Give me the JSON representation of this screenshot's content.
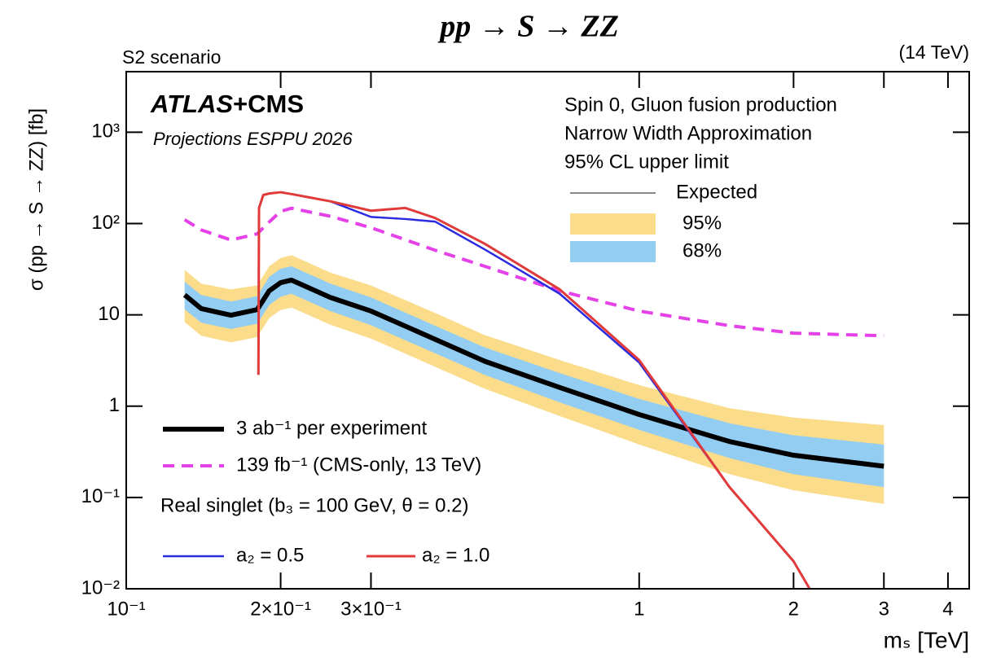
{
  "chart_data": {
    "type": "line",
    "title": "pp → S → ZZ",
    "subtitle": "S2 scenario",
    "energy": "(14 TeV)",
    "experiment": [
      "ATLAS",
      "+CMS"
    ],
    "projection": "Projections ESPPU 2026",
    "notes": [
      "Spin 0, Gluon fusion production",
      "Narrow Width Approximation",
      "95% CL upper limit"
    ],
    "expected_label": "Expected",
    "model_label": "Real singlet (b₃ = 100 GeV, θ = 0.2)",
    "x_label": "mₛ [TeV]",
    "y_label": "σ (pp → S → ZZ) [fb]",
    "xscale": "log",
    "yscale": "log",
    "xlim": [
      0.1,
      4.4
    ],
    "ylim": [
      0.01,
      4600
    ],
    "xticks": [
      {
        "value": 0.1,
        "label": "10⁻¹"
      },
      {
        "value": 0.2,
        "label": "2×10⁻¹"
      },
      {
        "value": 0.3,
        "label": "3×10⁻¹"
      },
      1,
      2,
      3,
      4
    ],
    "yticks": [
      {
        "value": 0.01,
        "label": "10⁻²"
      },
      {
        "value": 0.1,
        "label": "10⁻¹"
      },
      1,
      10,
      {
        "value": 100,
        "label": "10²"
      },
      {
        "value": 1000,
        "label": "10³"
      }
    ],
    "x": [
      0.13,
      0.14,
      0.16,
      0.18,
      0.19,
      0.2,
      0.21,
      0.25,
      0.3,
      0.4,
      0.5,
      0.7,
      1,
      1.5,
      2,
      3
    ],
    "bands": [
      {
        "name": "95%",
        "color": "#fbdc8a",
        "low": [
          8.3,
          5.9,
          5,
          5.7,
          9.2,
          11.3,
          12,
          7.8,
          5.5,
          2.7,
          1.55,
          0.78,
          0.38,
          0.18,
          0.12,
          0.085
        ],
        "high": [
          31,
          22,
          19,
          21,
          34,
          42,
          45,
          29,
          21,
          10.5,
          6,
          3.2,
          1.7,
          0.95,
          0.75,
          0.62
        ]
      },
      {
        "name": "68%",
        "color": "#93cdf2",
        "low": [
          11.5,
          8.2,
          7,
          8,
          12.8,
          15.8,
          17,
          11,
          7.7,
          3.8,
          2.2,
          1.1,
          0.55,
          0.27,
          0.18,
          0.13
        ],
        "high": [
          23,
          16.5,
          14,
          16,
          26,
          32,
          34,
          22,
          15.5,
          7.6,
          4.4,
          2.3,
          1.2,
          0.65,
          0.48,
          0.38
        ]
      }
    ],
    "series": [
      {
        "name": "3 ab⁻¹ per experiment",
        "color": "#000000",
        "width": 6,
        "dash": false,
        "x": [
          0.13,
          0.14,
          0.16,
          0.18,
          0.19,
          0.2,
          0.21,
          0.25,
          0.3,
          0.4,
          0.5,
          0.7,
          1,
          1.5,
          2,
          3
        ],
        "values": [
          16.5,
          11.7,
          9.9,
          11.4,
          18.3,
          22.5,
          24,
          15.5,
          11,
          5.4,
          3.1,
          1.6,
          0.81,
          0.41,
          0.29,
          0.22
        ]
      },
      {
        "name": "139 fb⁻¹ (CMS-only, 13 TeV)",
        "color": "#e442e8",
        "width": 4,
        "dash": true,
        "x": [
          0.13,
          0.14,
          0.16,
          0.18,
          0.19,
          0.2,
          0.21,
          0.25,
          0.3,
          0.4,
          0.5,
          0.7,
          1,
          1.5,
          2,
          3
        ],
        "values": [
          110,
          85,
          66,
          77,
          104,
          136,
          147,
          120,
          90,
          51,
          34,
          18.3,
          11,
          7.6,
          6.3,
          5.9
        ]
      },
      {
        "name": "a₂ = 0.5",
        "color": "#2a2ae0",
        "width": 2.5,
        "dash": false,
        "x": [
          0.25,
          0.3,
          0.35,
          0.4,
          0.5,
          0.7,
          1,
          1.5,
          2,
          2.15
        ],
        "values": [
          175,
          118,
          112,
          105,
          52,
          17,
          3.0,
          0.13,
          0.02,
          0.01
        ]
      },
      {
        "name": "a₂ = 1.0",
        "color": "#e03a3a",
        "width": 3,
        "dash": false,
        "x": [
          0.181,
          0.1815,
          0.185,
          0.19,
          0.2,
          0.21,
          0.25,
          0.3,
          0.35,
          0.4,
          0.5,
          0.7,
          1,
          1.5,
          2,
          2.15
        ],
        "values": [
          2.2,
          148,
          205,
          213,
          220,
          210,
          175,
          138,
          148,
          115,
          60,
          19,
          3.2,
          0.13,
          0.02,
          0.01
        ]
      }
    ]
  }
}
